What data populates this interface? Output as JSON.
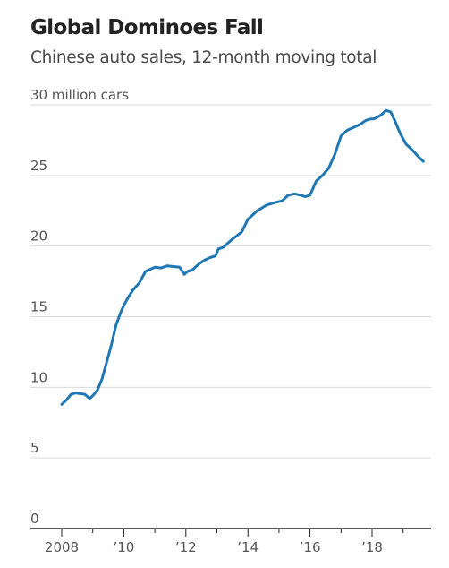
{
  "header": {
    "title": "Global Dominoes Fall",
    "subtitle": "Chinese auto sales, 12-month moving total"
  },
  "chart_data": {
    "type": "line",
    "title": "Global Dominoes Fall",
    "subtitle": "Chinese auto sales, 12-month moving total",
    "xlabel": "",
    "ylabel": "",
    "xlim": [
      2008,
      2019.7
    ],
    "ylim": [
      0,
      30
    ],
    "grid": true,
    "y_ticks": [
      {
        "value": 0,
        "label": "0"
      },
      {
        "value": 5,
        "label": "5"
      },
      {
        "value": 10,
        "label": "10"
      },
      {
        "value": 15,
        "label": "15"
      },
      {
        "value": 20,
        "label": "20"
      },
      {
        "value": 25,
        "label": "25"
      },
      {
        "value": 30,
        "label": "30 million cars"
      }
    ],
    "x_ticks": [
      {
        "value": 2008,
        "label": "2008"
      },
      {
        "value": 2010,
        "label": "’10"
      },
      {
        "value": 2012,
        "label": "’12"
      },
      {
        "value": 2014,
        "label": "’14"
      },
      {
        "value": 2016,
        "label": "’16"
      },
      {
        "value": 2018,
        "label": "’18"
      }
    ],
    "x_minor_ticks": [
      2009,
      2011,
      2013,
      2015,
      2017,
      2019
    ],
    "colors": {
      "line": "#1f77b4",
      "grid": "#d9d9d9",
      "axis": "#222222"
    },
    "series": [
      {
        "x": [
          2008.0,
          2008.15,
          2008.3,
          2008.45,
          2008.6,
          2008.75,
          2008.9,
          2009.0,
          2009.15,
          2009.3,
          2009.45,
          2009.6,
          2009.75,
          2009.9,
          2010.0,
          2010.15,
          2010.3,
          2010.5,
          2010.7,
          2010.9,
          2011.0,
          2011.2,
          2011.4,
          2011.6,
          2011.8,
          2011.95,
          2012.05,
          2012.2,
          2012.4,
          2012.6,
          2012.8,
          2012.95,
          2013.05,
          2013.2,
          2013.5,
          2013.8,
          2014.0,
          2014.3,
          2014.6,
          2014.9,
          2015.1,
          2015.3,
          2015.5,
          2015.7,
          2015.85,
          2016.0,
          2016.2,
          2016.4,
          2016.6,
          2016.8,
          2017.0,
          2017.2,
          2017.4,
          2017.6,
          2017.8,
          2017.95,
          2018.05,
          2018.15,
          2018.3,
          2018.45,
          2018.6,
          2018.75,
          2018.9,
          2019.1,
          2019.3,
          2019.5,
          2019.65
        ],
        "y": [
          8.8,
          9.1,
          9.5,
          9.6,
          9.55,
          9.5,
          9.2,
          9.4,
          9.8,
          10.6,
          11.8,
          13.0,
          14.4,
          15.3,
          15.8,
          16.4,
          16.9,
          17.4,
          18.2,
          18.4,
          18.5,
          18.45,
          18.6,
          18.55,
          18.5,
          18.0,
          18.2,
          18.3,
          18.7,
          19.0,
          19.2,
          19.3,
          19.8,
          19.9,
          20.5,
          21.0,
          21.9,
          22.5,
          22.9,
          23.1,
          23.2,
          23.6,
          23.7,
          23.6,
          23.5,
          23.6,
          24.6,
          25.0,
          25.5,
          26.5,
          27.8,
          28.2,
          28.4,
          28.6,
          28.9,
          29.0,
          29.0,
          29.1,
          29.3,
          29.6,
          29.5,
          28.8,
          28.0,
          27.2,
          26.8,
          26.3,
          26.0
        ]
      }
    ]
  }
}
